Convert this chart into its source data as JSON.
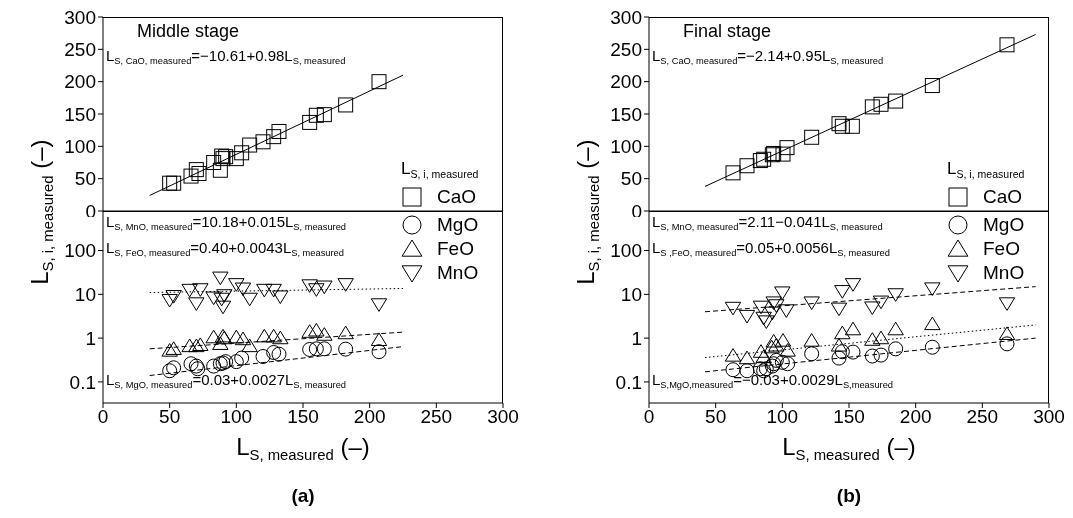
{
  "chart_data": [
    {
      "type": "scatter",
      "title": "Middle stage",
      "ylabel": "L$_{S, i, measured}$ (–)",
      "legend_title": "L$_{S, i, measured}$",
      "legend": "bottom right",
      "tick_labels": "y",
      "xlim": [
        0,
        300
      ],
      "xticks": [
        0,
        50,
        100,
        150,
        200,
        250,
        300
      ],
      "ylim": [
        0,
        300
      ],
      "yticks": [
        0,
        50,
        100,
        150,
        200,
        250,
        300
      ],
      "annotations": [
        "L$_{S, CaO, measured}$=−10.61+0.98L$_{S, measured}$"
      ],
      "series": [
        {
          "type": "scatter",
          "name": "CaO",
          "color": "#000000",
          "marker": "square",
          "x": [
            50,
            53,
            66,
            70,
            72,
            83,
            88,
            89,
            90,
            92,
            100,
            104,
            110,
            120,
            128,
            132,
            155,
            160,
            166,
            182,
            207
          ],
          "values": [
            43,
            43,
            54,
            64,
            58,
            75,
            63,
            85,
            81,
            84,
            81,
            90,
            102,
            107,
            115,
            123,
            137,
            148,
            149,
            164,
            200
          ]
        },
        {
          "type": "line",
          "color": "#000000",
          "line_style": "solid",
          "x": [
            35,
            225
          ],
          "values": [
            24,
            210
          ]
        }
      ]
    },
    {
      "type": "scatter",
      "xlabel": "L$_{S, measured}$ (–)",
      "legend": "top right",
      "log": "y",
      "xlim": [
        0,
        300
      ],
      "xticks": [
        0,
        50,
        100,
        150,
        200,
        250,
        300
      ],
      "ylim": [
        0.033,
        800
      ],
      "yticks": [
        0.1,
        1,
        10,
        100
      ],
      "annotations": [
        "(a)",
        "L$_{S, MnO, measured}$=10.18+0.015L$_{S, measured}$",
        "L$_{S, FeO, measured}$=0.40+0.0043L$_{S, measured}$",
        "L$_{S, MgO, measured}$=0.03+0.0027L$_{S, measured}$"
      ],
      "series": [
        {
          "type": "scatter",
          "name": "MgO",
          "color": "#000000",
          "marker": "circle",
          "x": [
            50,
            53,
            66,
            70,
            71,
            83,
            88,
            90,
            92,
            100,
            104,
            120,
            128,
            132,
            155,
            160,
            166,
            182,
            207
          ],
          "values": [
            0.18,
            0.21,
            0.26,
            0.23,
            0.2,
            0.23,
            0.26,
            0.27,
            0.29,
            0.29,
            0.35,
            0.38,
            0.47,
            0.43,
            0.55,
            0.57,
            0.57,
            0.56,
            0.49
          ]
        },
        {
          "type": "scatter",
          "name": "FeO",
          "color": "#000000",
          "marker": "triangle",
          "x": [
            50,
            53,
            65,
            70,
            73,
            83,
            88,
            90,
            91,
            100,
            105,
            110,
            121,
            128,
            133,
            155,
            160,
            166,
            182,
            207
          ],
          "values": [
            0.52,
            0.57,
            0.66,
            0.66,
            0.7,
            1.05,
            0.74,
            1.1,
            1.0,
            1.05,
            0.95,
            0.66,
            1.1,
            1.1,
            1.0,
            1.4,
            1.5,
            1.2,
            1.3,
            0.91
          ]
        },
        {
          "type": "scatter",
          "name": "MnO",
          "color": "#000000",
          "marker": "triangle-down",
          "x": [
            50,
            53,
            65,
            70,
            73,
            83,
            88,
            89,
            90,
            91,
            100,
            105,
            110,
            121,
            128,
            133,
            155,
            160,
            166,
            182,
            207
          ],
          "values": [
            7.4,
            9.1,
            12.6,
            6.2,
            13,
            8.4,
            24,
            7.9,
            5.2,
            9.5,
            17,
            13.5,
            7.9,
            12.6,
            12.6,
            8.9,
            16,
            13,
            15,
            17,
            5.9
          ]
        },
        {
          "type": "line",
          "color": "#000000",
          "line_style": "dotted",
          "x": [
            35,
            225
          ],
          "values": [
            11,
            13.6
          ]
        },
        {
          "type": "line",
          "color": "#000000",
          "line_style": "dashed",
          "x": [
            35,
            225
          ],
          "values": [
            0.57,
            1.37
          ]
        },
        {
          "type": "line",
          "color": "#000000",
          "line_style": "dashed",
          "x": [
            35,
            225
          ],
          "values": [
            0.14,
            0.64
          ]
        }
      ]
    },
    {
      "type": "scatter",
      "title": "Final stage",
      "ylabel": "L$_{S, i, measured}$ (–)",
      "legend_title": "L$_{S, i, measured}$",
      "legend": "bottom right",
      "tick_labels": "y",
      "xlim": [
        0,
        300
      ],
      "xticks": [
        0,
        50,
        100,
        150,
        200,
        250,
        300
      ],
      "ylim": [
        0,
        300
      ],
      "yticks": [
        0,
        50,
        100,
        150,
        200,
        250,
        300
      ],
      "annotations": [
        "L$_{S, CaO, measured}$=−2.14+0.95L$_{S, measured}$"
      ],
      "series": [
        {
          "type": "scatter",
          "name": "CaO",
          "color": "#000000",
          "marker": "square",
          "x": [
            63,
            73.5,
            83.5,
            86,
            92.5,
            93.5,
            100.5,
            103.5,
            122,
            142.5,
            145,
            152.5,
            167.5,
            174,
            185,
            212.5,
            268.5
          ],
          "values": [
            59,
            70,
            78,
            80,
            87,
            89,
            88,
            98,
            114,
            135,
            131,
            131,
            161,
            165,
            170,
            194,
            257
          ]
        },
        {
          "type": "line",
          "color": "#000000",
          "line_style": "solid",
          "x": [
            42,
            290
          ],
          "values": [
            38,
            273
          ]
        }
      ]
    },
    {
      "type": "scatter",
      "xlabel": "L$_{S, measured}$ (–)",
      "legend": "top right",
      "log": "y",
      "xlim": [
        0,
        300
      ],
      "xticks": [
        0,
        50,
        100,
        150,
        200,
        250,
        300
      ],
      "ylim": [
        0.033,
        800
      ],
      "yticks": [
        0.1,
        1,
        10,
        100
      ],
      "annotations": [
        "(b)",
        "L$_{S, MnO, measured}$=2.11−0.041L$_{S, measured}$",
        "L$_{S ,FeO, measured}$=0.05+0.0056L$_{S, measured}$",
        "L$_{S,MgO,measured}$=−0.03+0.0029L$_{S,measured}$"
      ],
      "series": [
        {
          "type": "scatter",
          "name": "MgO",
          "color": "#000000",
          "marker": "circle",
          "x": [
            63,
            73.5,
            83.5,
            86,
            88,
            92.5,
            93.5,
            95.5,
            100,
            104,
            122,
            142.5,
            145,
            153,
            167.5,
            174,
            185,
            212.5,
            268.5
          ],
          "values": [
            0.19,
            0.18,
            0.2,
            0.18,
            0.2,
            0.23,
            0.26,
            0.31,
            0.28,
            0.26,
            0.44,
            0.35,
            0.49,
            0.48,
            0.39,
            0.41,
            0.57,
            0.62,
            0.74
          ]
        },
        {
          "type": "scatter",
          "name": "FeO",
          "color": "#000000",
          "marker": "triangle",
          "x": [
            63,
            73.5,
            84,
            86,
            92,
            93.5,
            95.5,
            100.5,
            104,
            122,
            142.5,
            145,
            153,
            167.5,
            174,
            185,
            212.5,
            268.5
          ],
          "values": [
            0.4,
            0.35,
            0.49,
            0.37,
            0.62,
            0.84,
            0.68,
            0.88,
            0.52,
            0.88,
            0.68,
            1.3,
            1.6,
            0.92,
            1.0,
            1.6,
            2.1,
            1.25
          ]
        },
        {
          "type": "scatter",
          "name": "MnO",
          "color": "#000000",
          "marker": "triangle-down",
          "x": [
            63,
            73.5,
            84,
            86,
            88,
            92.5,
            93.5,
            95.5,
            100,
            103,
            122,
            142.5,
            145,
            153,
            167.5,
            174,
            185,
            212.5,
            268.5
          ],
          "values": [
            4.9,
            3.2,
            5.2,
            2.9,
            2.4,
            3.8,
            6.5,
            5.6,
            11,
            4.3,
            6.5,
            4.7,
            11.8,
            17,
            5,
            6.8,
            10,
            13.6,
            6.2
          ]
        },
        {
          "type": "line",
          "color": "#000000",
          "line_style": "dashed",
          "x": [
            42,
            290
          ],
          "values": [
            4,
            15
          ]
        },
        {
          "type": "line",
          "color": "#000000",
          "line_style": "dotted",
          "x": [
            42,
            290
          ],
          "values": [
            0.36,
            2.0
          ]
        },
        {
          "type": "line",
          "color": "#000000",
          "line_style": "dashed",
          "x": [
            42,
            290
          ],
          "values": [
            0.17,
            1.0
          ]
        }
      ]
    }
  ]
}
